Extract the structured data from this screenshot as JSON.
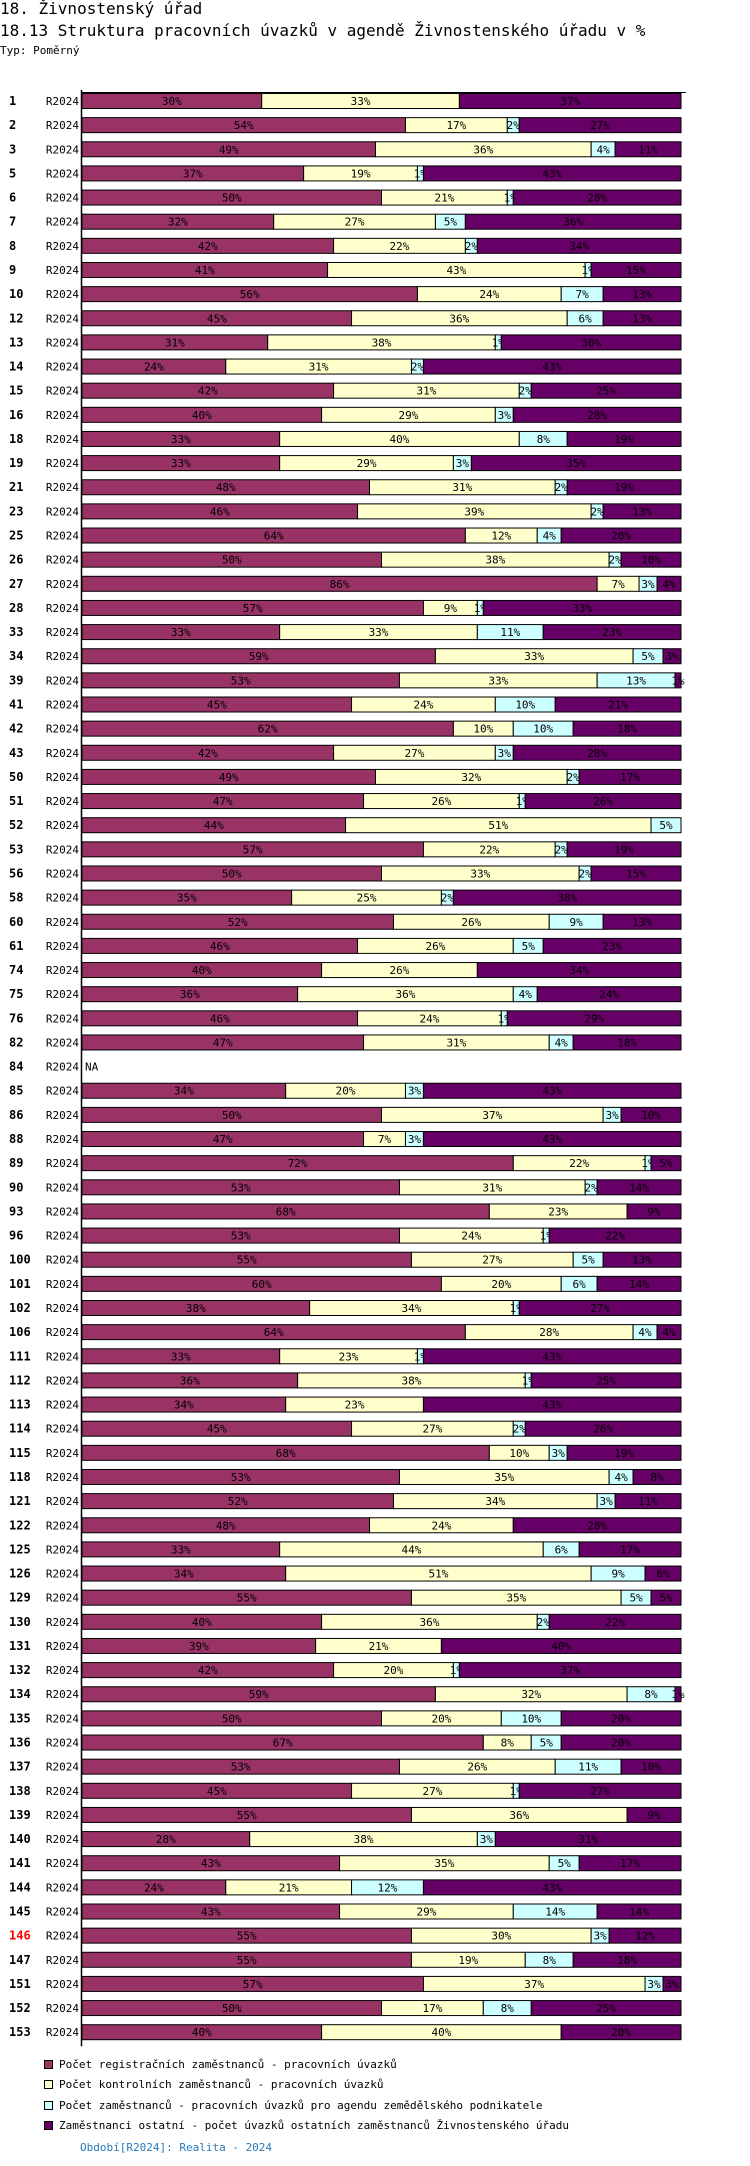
{
  "header": {
    "section_title": "18. Živnostenský úřad",
    "chart_title": "18.13 Struktura pracovních úvazků v agendě Živnostenského úřadu v %",
    "type_label": "Typ: Poměrný"
  },
  "colors": {
    "registration": "#993366",
    "control": "#FFFFCC",
    "agriculture": "#CCFFFF",
    "other": "#660066",
    "highlight_row_label": "#FF0000",
    "footer_text": "#2A79B8"
  },
  "footer": {
    "period_note": "Období[R2024]: Realita - 2024"
  },
  "chart_data": {
    "type": "bar",
    "orientation": "horizontal",
    "stacked": true,
    "normalized": true,
    "title": "18.13 Struktura pracovních úvazků v agendě Živnostenského úřadu v %",
    "xlabel": "",
    "ylabel": "",
    "xlim": [
      0,
      100
    ],
    "grid": false,
    "legend_position": "bottom",
    "series_label": "R2024",
    "highlighted_category": "146",
    "legend": [
      "Počet registračních zaměstnanců - pracovních úvazků",
      "Počet kontrolních zaměstnanců - pracovních úvazků",
      "Počet zaměstnanců - pracovních úvazků pro agendu zemědělského podnikatele",
      "Zaměstnanci ostatní - počet úvazků ostatních zaměstnanců Živnostenského úřadu"
    ],
    "na_label": "NA",
    "categories": [
      "1",
      "2",
      "3",
      "5",
      "6",
      "7",
      "8",
      "9",
      "10",
      "12",
      "13",
      "14",
      "15",
      "16",
      "18",
      "19",
      "21",
      "23",
      "25",
      "26",
      "27",
      "28",
      "33",
      "34",
      "39",
      "41",
      "42",
      "43",
      "50",
      "51",
      "52",
      "53",
      "56",
      "58",
      "60",
      "61",
      "74",
      "75",
      "76",
      "82",
      "84",
      "85",
      "86",
      "88",
      "89",
      "90",
      "93",
      "96",
      "100",
      "101",
      "102",
      "106",
      "111",
      "112",
      "113",
      "114",
      "115",
      "118",
      "121",
      "122",
      "125",
      "126",
      "129",
      "130",
      "131",
      "132",
      "134",
      "135",
      "136",
      "137",
      "138",
      "139",
      "140",
      "141",
      "144",
      "145",
      "146",
      "147",
      "151",
      "152",
      "153"
    ],
    "series": [
      {
        "name": "Počet registračních zaměstnanců - pracovních úvazků",
        "values": [
          30,
          54,
          49,
          37,
          50,
          32,
          42,
          41,
          56,
          45,
          31,
          24,
          42,
          40,
          33,
          33,
          48,
          46,
          64,
          50,
          86,
          57,
          33,
          59,
          53,
          45,
          62,
          42,
          49,
          47,
          44,
          57,
          50,
          35,
          52,
          46,
          40,
          36,
          46,
          47,
          null,
          34,
          50,
          47,
          72,
          53,
          68,
          53,
          55,
          60,
          38,
          64,
          33,
          36,
          34,
          45,
          68,
          53,
          52,
          48,
          33,
          34,
          55,
          40,
          39,
          42,
          59,
          50,
          67,
          53,
          45,
          55,
          28,
          43,
          24,
          43,
          55,
          55,
          57,
          50,
          40
        ]
      },
      {
        "name": "Počet kontrolních zaměstnanců - pracovních úvazků",
        "values": [
          33,
          17,
          36,
          19,
          21,
          27,
          22,
          43,
          24,
          36,
          38,
          31,
          31,
          29,
          40,
          29,
          31,
          39,
          12,
          38,
          7,
          9,
          33,
          33,
          33,
          24,
          10,
          27,
          32,
          26,
          51,
          22,
          33,
          25,
          26,
          26,
          26,
          36,
          24,
          31,
          null,
          20,
          37,
          7,
          22,
          31,
          23,
          24,
          27,
          20,
          34,
          28,
          23,
          38,
          23,
          27,
          10,
          35,
          34,
          24,
          44,
          51,
          35,
          36,
          21,
          20,
          32,
          20,
          8,
          26,
          27,
          36,
          38,
          35,
          21,
          29,
          30,
          19,
          37,
          17,
          40
        ]
      },
      {
        "name": "Počet zaměstnanců - pracovních úvazků pro agendu zemědělského podnikatele",
        "values": [
          0,
          2,
          4,
          1,
          1,
          5,
          2,
          1,
          7,
          6,
          1,
          2,
          2,
          3,
          8,
          3,
          2,
          2,
          4,
          2,
          3,
          1,
          11,
          5,
          13,
          10,
          10,
          3,
          2,
          1,
          5,
          2,
          2,
          2,
          9,
          5,
          0,
          4,
          1,
          4,
          null,
          3,
          3,
          3,
          1,
          2,
          0,
          1,
          5,
          6,
          1,
          4,
          1,
          1,
          0,
          2,
          3,
          4,
          3,
          0,
          6,
          9,
          5,
          2,
          0,
          1,
          8,
          10,
          5,
          11,
          1,
          0,
          3,
          5,
          12,
          14,
          3,
          8,
          3,
          8,
          0
        ]
      },
      {
        "name": "Zaměstnanci ostatní - počet úvazků ostatních zaměstnanců Živnostenského úřadu",
        "values": [
          37,
          27,
          11,
          43,
          28,
          36,
          34,
          15,
          13,
          13,
          30,
          43,
          25,
          28,
          19,
          35,
          19,
          13,
          20,
          10,
          4,
          33,
          23,
          3,
          1,
          21,
          18,
          28,
          17,
          26,
          0,
          19,
          15,
          38,
          13,
          23,
          34,
          24,
          29,
          18,
          null,
          43,
          10,
          43,
          5,
          14,
          9,
          22,
          13,
          14,
          27,
          4,
          43,
          25,
          43,
          26,
          19,
          8,
          11,
          28,
          17,
          6,
          5,
          22,
          40,
          37,
          1,
          20,
          20,
          10,
          27,
          9,
          31,
          17,
          43,
          14,
          12,
          18,
          3,
          25,
          20
        ]
      }
    ]
  }
}
